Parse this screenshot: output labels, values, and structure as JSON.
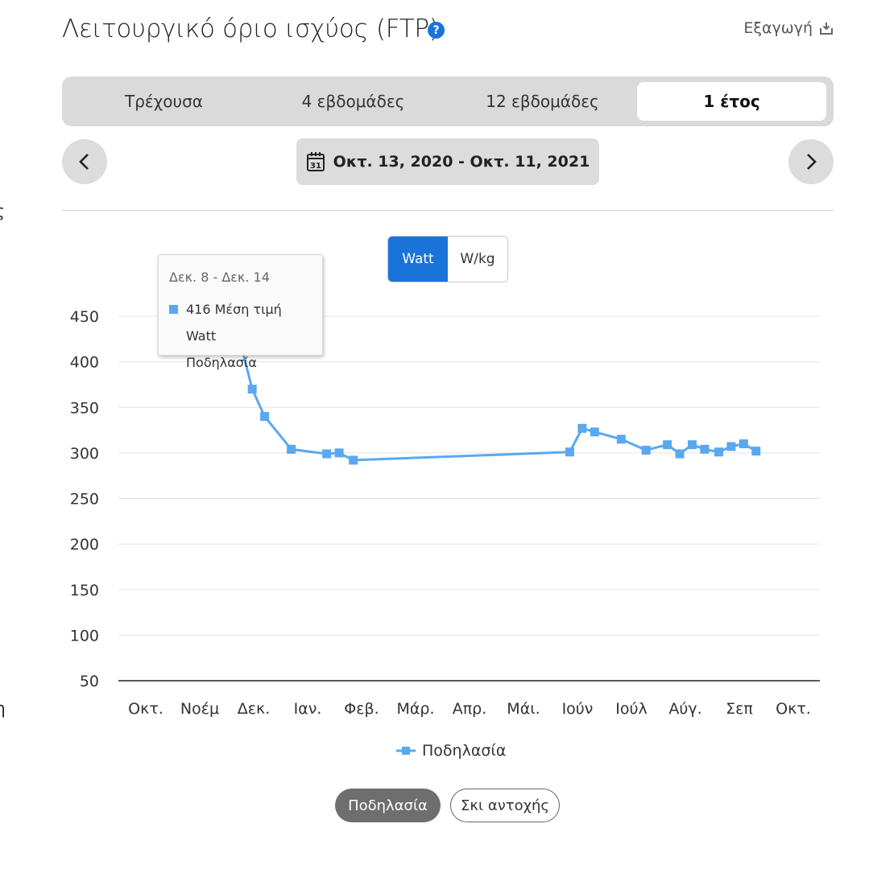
{
  "edge_chars": {
    "top": "ς",
    "bottom": "η"
  },
  "header": {
    "title": "Λειτουργικό όριο ισχύος (FTP)",
    "help_icon": "?",
    "export_label": "Εξαγωγή"
  },
  "tabs": [
    {
      "label": "Τρέχουσα",
      "active": false
    },
    {
      "label": "4 εβδομάδες",
      "active": false
    },
    {
      "label": "12 εβδομάδες",
      "active": false
    },
    {
      "label": "1 έτος",
      "active": true
    }
  ],
  "date_nav": {
    "range_label": "Οκτ. 13, 2020 - Οκτ. 11, 2021",
    "calendar_day": "31"
  },
  "unit_toggle": {
    "options": [
      "Watt",
      "W/kg"
    ],
    "selected": "Watt"
  },
  "tooltip": {
    "title": "Δεκ. 8 - Δεκ. 14",
    "value_text": "416 Μέση τιμή Watt",
    "series_text": "Ποδηλασία"
  },
  "sport_buttons": [
    {
      "label": "Ποδηλασία",
      "active": true
    },
    {
      "label": "Σκι αντοχής",
      "active": false
    }
  ],
  "colors": {
    "accent": "#1a73d9",
    "series": "#5aa8ee"
  },
  "chart_data": {
    "type": "line",
    "title": "",
    "xlabel": "",
    "ylabel": "",
    "yticks": [
      50,
      100,
      150,
      200,
      250,
      300,
      350,
      400,
      450
    ],
    "ylim": [
      50,
      450
    ],
    "grid": true,
    "x_tick_labels": [
      "Οκτ.",
      "Νοέμ",
      "Δεκ.",
      "Ιαν.",
      "Φεβ.",
      "Μάρ.",
      "Απρ.",
      "Μάι.",
      "Ιούν",
      "Ιούλ",
      "Αύγ.",
      "Σεπ",
      "Οκτ."
    ],
    "legend": {
      "position": "bottom",
      "entries": [
        "Ποδηλασία"
      ]
    },
    "series": [
      {
        "name": "Ποδηλασία",
        "points": [
          {
            "x": "2020-12-08",
            "y": 416
          },
          {
            "x": "2020-12-14",
            "y": 370
          },
          {
            "x": "2020-12-21",
            "y": 340
          },
          {
            "x": "2021-01-05",
            "y": 304
          },
          {
            "x": "2021-01-25",
            "y": 299
          },
          {
            "x": "2021-02-01",
            "y": 300
          },
          {
            "x": "2021-02-09",
            "y": 292
          },
          {
            "x": "2021-06-11",
            "y": 301
          },
          {
            "x": "2021-06-18",
            "y": 327
          },
          {
            "x": "2021-06-25",
            "y": 323
          },
          {
            "x": "2021-07-10",
            "y": 315
          },
          {
            "x": "2021-07-24",
            "y": 303
          },
          {
            "x": "2021-08-05",
            "y": 309
          },
          {
            "x": "2021-08-12",
            "y": 299
          },
          {
            "x": "2021-08-19",
            "y": 309
          },
          {
            "x": "2021-08-26",
            "y": 304
          },
          {
            "x": "2021-09-03",
            "y": 301
          },
          {
            "x": "2021-09-10",
            "y": 307
          },
          {
            "x": "2021-09-17",
            "y": 310
          },
          {
            "x": "2021-09-24",
            "y": 302
          }
        ]
      }
    ]
  }
}
